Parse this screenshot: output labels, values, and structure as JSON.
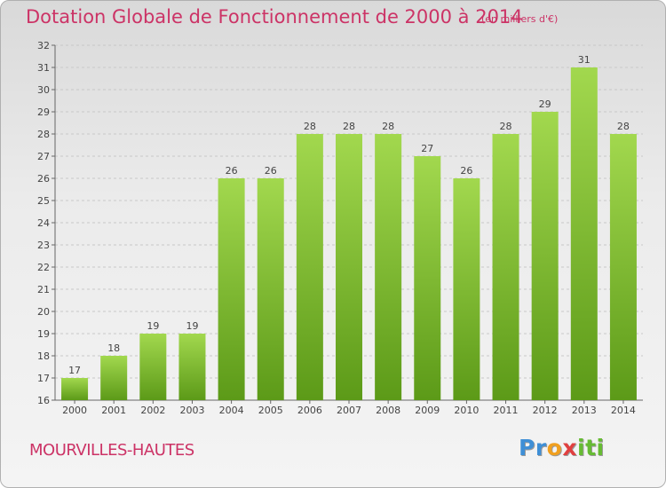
{
  "header": {
    "title": "Dotation Globale de Fonctionnement de 2000 à 2014",
    "subtitle": "(en milliers d'€)"
  },
  "footer": {
    "commune": "MOURVILLES-HAUTES",
    "logo_text": "Proxiti"
  },
  "chart_data": {
    "type": "bar",
    "title": "Dotation Globale de Fonctionnement de 2000 à 2014",
    "subtitle": "(en milliers d'€)",
    "xlabel": "",
    "ylabel": "",
    "categories": [
      "2000",
      "2001",
      "2002",
      "2003",
      "2004",
      "2005",
      "2006",
      "2007",
      "2008",
      "2009",
      "2010",
      "2011",
      "2012",
      "2013",
      "2014"
    ],
    "values": [
      17,
      18,
      19,
      19,
      26,
      26,
      28,
      28,
      28,
      27,
      26,
      28,
      29,
      31,
      28
    ],
    "ylim": [
      16,
      32
    ],
    "yticks": [
      16,
      17,
      18,
      19,
      20,
      21,
      22,
      23,
      24,
      25,
      26,
      27,
      28,
      29,
      30,
      31,
      32
    ],
    "grid": "horizontal",
    "colors": {
      "bar_top": "#9fd64b",
      "bar_bottom": "#5e9d1a",
      "grid": "#c8c8c8",
      "text_accent": "#cc3366"
    }
  }
}
